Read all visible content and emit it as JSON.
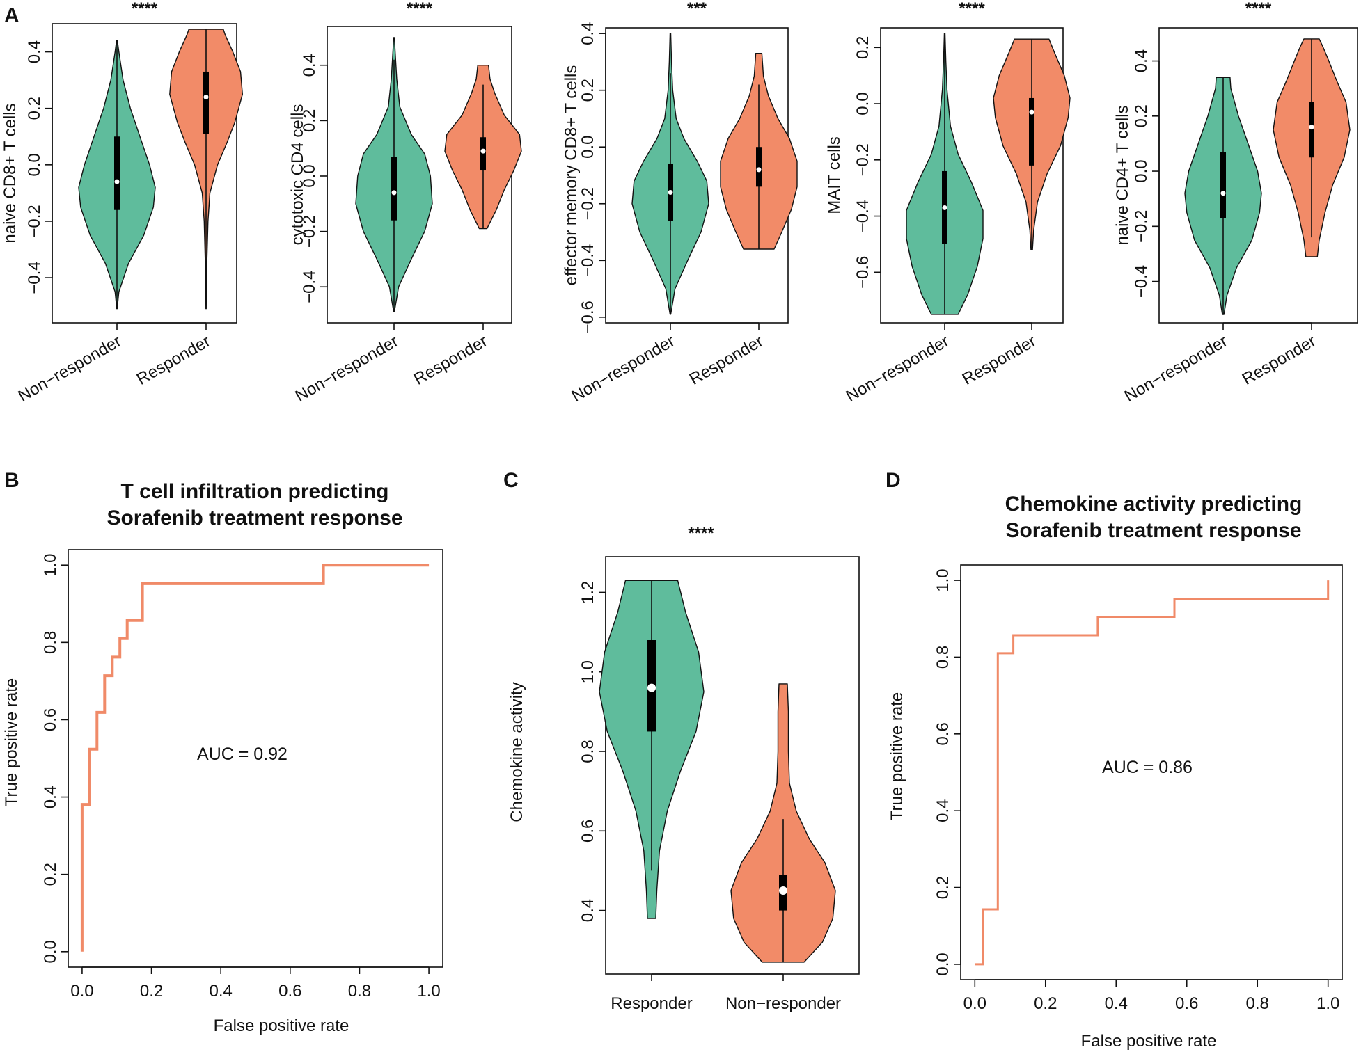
{
  "colors": {
    "non_responder_green": "#5fbc9c",
    "responder_orange": "#f28b68",
    "roc_line": "#f08a68",
    "box": "#000000",
    "median": "#ffffff"
  },
  "panels": {
    "A": {
      "letter": "A"
    },
    "B": {
      "letter": "B",
      "title_line1": "T cell infiltration predicting",
      "title_line2": "Sorafenib treatment response",
      "auc_text": "AUC = 0.92",
      "xlabel": "False positive rate",
      "ylabel": "True positive rate"
    },
    "C": {
      "letter": "C",
      "stars": "****",
      "ylabel": "Chemokine  activity"
    },
    "D": {
      "letter": "D",
      "title_line1": "Chemokine activity predicting",
      "title_line2": "Sorafenib treatment response",
      "auc_text": "AUC = 0.86",
      "xlabel": "False positive rate",
      "ylabel": "True positive rate"
    }
  },
  "chart_data": [
    {
      "type": "violin",
      "panel": "A1",
      "stars": "****",
      "ylabel": "naive CD8+ T cells",
      "categories": [
        "Non−responder",
        "Responder"
      ],
      "ylim": [
        -0.56,
        0.5
      ],
      "yticks": [
        -0.4,
        -0.2,
        0.0,
        0.2,
        0.4
      ],
      "ytick_labels": [
        "−0.4",
        "−0.2",
        "0.0",
        "0.2",
        "0.4"
      ],
      "groups": [
        {
          "name": "Non−responder",
          "min": -0.51,
          "q1": -0.16,
          "median": -0.06,
          "q3": 0.1,
          "max": 0.44,
          "whisker_low": -0.51,
          "whisker_high": 0.44,
          "density": [
            [
              -0.51,
              0.005
            ],
            [
              -0.45,
              0.05
            ],
            [
              -0.35,
              0.3
            ],
            [
              -0.25,
              0.7
            ],
            [
              -0.15,
              0.95
            ],
            [
              -0.08,
              1.0
            ],
            [
              0.0,
              0.85
            ],
            [
              0.1,
              0.6
            ],
            [
              0.2,
              0.35
            ],
            [
              0.3,
              0.16
            ],
            [
              0.4,
              0.05
            ],
            [
              0.44,
              0.01
            ]
          ]
        },
        {
          "name": "Responder",
          "min": -0.51,
          "q1": 0.11,
          "median": 0.24,
          "q3": 0.33,
          "max": 0.48,
          "whisker_low": -0.51,
          "whisker_high": 0.48,
          "density": [
            [
              -0.51,
              0.003
            ],
            [
              -0.35,
              0.02
            ],
            [
              -0.2,
              0.05
            ],
            [
              -0.1,
              0.1
            ],
            [
              0.0,
              0.3
            ],
            [
              0.08,
              0.55
            ],
            [
              0.15,
              0.75
            ],
            [
              0.25,
              0.95
            ],
            [
              0.33,
              0.9
            ],
            [
              0.4,
              0.7
            ],
            [
              0.46,
              0.5
            ],
            [
              0.48,
              0.45
            ]
          ]
        }
      ]
    },
    {
      "type": "violin",
      "panel": "A2",
      "stars": "****",
      "ylabel": "cytotoxic CD4 cells",
      "categories": [
        "Non−responder",
        "Responder"
      ],
      "ylim": [
        -0.53,
        0.54
      ],
      "yticks": [
        -0.4,
        -0.2,
        0.0,
        0.2,
        0.4
      ],
      "ytick_labels": [
        "−0.4",
        "−0.2",
        "0.0",
        "0.2",
        "0.4"
      ],
      "groups": [
        {
          "name": "Non−responder",
          "min": -0.49,
          "q1": -0.16,
          "median": -0.06,
          "q3": 0.07,
          "max": 0.5,
          "whisker_low": -0.49,
          "whisker_high": 0.42,
          "density": [
            [
              -0.49,
              0.01
            ],
            [
              -0.4,
              0.12
            ],
            [
              -0.3,
              0.45
            ],
            [
              -0.2,
              0.8
            ],
            [
              -0.1,
              1.0
            ],
            [
              0.0,
              0.95
            ],
            [
              0.08,
              0.8
            ],
            [
              0.15,
              0.45
            ],
            [
              0.25,
              0.15
            ],
            [
              0.35,
              0.07
            ],
            [
              0.45,
              0.03
            ],
            [
              0.5,
              0.01
            ]
          ]
        },
        {
          "name": "Responder",
          "min": -0.19,
          "q1": 0.02,
          "median": 0.09,
          "q3": 0.14,
          "max": 0.4,
          "whisker_low": -0.19,
          "whisker_high": 0.33,
          "density": [
            [
              -0.19,
              0.1
            ],
            [
              -0.12,
              0.35
            ],
            [
              -0.05,
              0.55
            ],
            [
              0.02,
              0.8
            ],
            [
              0.09,
              1.0
            ],
            [
              0.15,
              0.95
            ],
            [
              0.22,
              0.55
            ],
            [
              0.3,
              0.3
            ],
            [
              0.35,
              0.18
            ],
            [
              0.4,
              0.14
            ]
          ]
        }
      ]
    },
    {
      "type": "violin",
      "panel": "A3",
      "stars": "***",
      "ylabel": "effector memory CD8+ T cells",
      "categories": [
        "Non−responder",
        "Responder"
      ],
      "ylim": [
        -0.62,
        0.42
      ],
      "yticks": [
        -0.6,
        -0.4,
        -0.2,
        0.0,
        0.2,
        0.4
      ],
      "ytick_labels": [
        "−0.6",
        "−0.4",
        "−0.2",
        "0.0",
        "0.2",
        "0.4"
      ],
      "groups": [
        {
          "name": "Non−responder",
          "min": -0.59,
          "q1": -0.26,
          "median": -0.16,
          "q3": -0.06,
          "max": 0.4,
          "whisker_low": -0.59,
          "whisker_high": 0.26,
          "density": [
            [
              -0.59,
              0.01
            ],
            [
              -0.5,
              0.12
            ],
            [
              -0.4,
              0.45
            ],
            [
              -0.3,
              0.8
            ],
            [
              -0.2,
              1.0
            ],
            [
              -0.12,
              0.95
            ],
            [
              -0.05,
              0.7
            ],
            [
              0.03,
              0.35
            ],
            [
              0.1,
              0.15
            ],
            [
              0.2,
              0.06
            ],
            [
              0.3,
              0.03
            ],
            [
              0.4,
              0.01
            ]
          ]
        },
        {
          "name": "Responder",
          "min": -0.36,
          "q1": -0.14,
          "median": -0.08,
          "q3": 0.0,
          "max": 0.33,
          "whisker_low": -0.36,
          "whisker_high": 0.22,
          "density": [
            [
              -0.36,
              0.4
            ],
            [
              -0.3,
              0.6
            ],
            [
              -0.22,
              0.85
            ],
            [
              -0.14,
              1.0
            ],
            [
              -0.05,
              1.0
            ],
            [
              0.03,
              0.8
            ],
            [
              0.1,
              0.5
            ],
            [
              0.18,
              0.25
            ],
            [
              0.25,
              0.12
            ],
            [
              0.33,
              0.08
            ]
          ]
        }
      ]
    },
    {
      "type": "violin",
      "panel": "A4",
      "stars": "****",
      "ylabel": "MAIT cells",
      "categories": [
        "Non−responder",
        "Responder"
      ],
      "ylim": [
        -0.78,
        0.27
      ],
      "yticks": [
        -0.6,
        -0.4,
        -0.2,
        0.0,
        0.2
      ],
      "ytick_labels": [
        "−0.6",
        "−0.4",
        "−0.2",
        "0.0",
        "0.2"
      ],
      "groups": [
        {
          "name": "Non−responder",
          "min": -0.75,
          "q1": -0.5,
          "median": -0.37,
          "q3": -0.24,
          "max": 0.25,
          "whisker_low": -0.75,
          "whisker_high": 0.25,
          "density": [
            [
              -0.75,
              0.35
            ],
            [
              -0.68,
              0.6
            ],
            [
              -0.58,
              0.85
            ],
            [
              -0.48,
              1.0
            ],
            [
              -0.38,
              1.0
            ],
            [
              -0.28,
              0.7
            ],
            [
              -0.18,
              0.35
            ],
            [
              -0.08,
              0.15
            ],
            [
              0.05,
              0.06
            ],
            [
              0.15,
              0.03
            ],
            [
              0.25,
              0.01
            ]
          ]
        },
        {
          "name": "Responder",
          "min": -0.52,
          "q1": -0.22,
          "median": -0.03,
          "q3": 0.02,
          "max": 0.23,
          "whisker_low": -0.52,
          "whisker_high": 0.23,
          "density": [
            [
              -0.52,
              0.02
            ],
            [
              -0.45,
              0.05
            ],
            [
              -0.35,
              0.15
            ],
            [
              -0.25,
              0.4
            ],
            [
              -0.15,
              0.75
            ],
            [
              -0.05,
              0.95
            ],
            [
              0.02,
              1.0
            ],
            [
              0.1,
              0.85
            ],
            [
              0.18,
              0.6
            ],
            [
              0.23,
              0.45
            ]
          ]
        }
      ]
    },
    {
      "type": "violin",
      "panel": "A5",
      "stars": "****",
      "ylabel": "naive CD4+ T cells",
      "categories": [
        "Non−responder",
        "Responder"
      ],
      "ylim": [
        -0.55,
        0.52
      ],
      "yticks": [
        -0.4,
        -0.2,
        0.0,
        0.2,
        0.4
      ],
      "ytick_labels": [
        "−0.4",
        "−0.2",
        "0.0",
        "0.2",
        "0.4"
      ],
      "groups": [
        {
          "name": "Non−responder",
          "min": -0.52,
          "q1": -0.17,
          "median": -0.08,
          "q3": 0.07,
          "max": 0.34,
          "whisker_low": -0.52,
          "whisker_high": 0.34,
          "density": [
            [
              -0.52,
              0.02
            ],
            [
              -0.45,
              0.1
            ],
            [
              -0.35,
              0.35
            ],
            [
              -0.25,
              0.75
            ],
            [
              -0.15,
              0.95
            ],
            [
              -0.08,
              1.0
            ],
            [
              0.0,
              0.9
            ],
            [
              0.1,
              0.65
            ],
            [
              0.2,
              0.4
            ],
            [
              0.3,
              0.2
            ],
            [
              0.34,
              0.18
            ]
          ]
        },
        {
          "name": "Responder",
          "min": -0.31,
          "q1": 0.05,
          "median": 0.16,
          "q3": 0.25,
          "max": 0.48,
          "whisker_low": -0.24,
          "whisker_high": 0.48,
          "density": [
            [
              -0.31,
              0.15
            ],
            [
              -0.25,
              0.2
            ],
            [
              -0.15,
              0.35
            ],
            [
              -0.05,
              0.55
            ],
            [
              0.05,
              0.85
            ],
            [
              0.15,
              1.0
            ],
            [
              0.25,
              0.9
            ],
            [
              0.33,
              0.65
            ],
            [
              0.4,
              0.45
            ],
            [
              0.45,
              0.3
            ],
            [
              0.48,
              0.2
            ]
          ]
        }
      ]
    },
    {
      "type": "violin",
      "panel": "C",
      "stars": "****",
      "ylabel": "Chemokine  activity",
      "categories": [
        "Responder",
        "Non−responder"
      ],
      "ylim": [
        0.24,
        1.29
      ],
      "yticks": [
        0.4,
        0.6,
        0.8,
        1.0,
        1.2
      ],
      "ytick_labels": [
        "0.4",
        "0.6",
        "0.8",
        "1.0",
        "1.2"
      ],
      "groups": [
        {
          "name": "Responder",
          "min": 0.38,
          "q1": 0.85,
          "median": 0.96,
          "q3": 1.08,
          "max": 1.23,
          "whisker_low": 0.5,
          "whisker_high": 1.23,
          "density": [
            [
              0.38,
              0.08
            ],
            [
              0.45,
              0.1
            ],
            [
              0.55,
              0.15
            ],
            [
              0.65,
              0.3
            ],
            [
              0.75,
              0.55
            ],
            [
              0.85,
              0.85
            ],
            [
              0.95,
              1.0
            ],
            [
              1.05,
              0.9
            ],
            [
              1.15,
              0.65
            ],
            [
              1.23,
              0.5
            ]
          ]
        },
        {
          "name": "Non−responder",
          "min": 0.27,
          "q1": 0.4,
          "median": 0.45,
          "q3": 0.49,
          "max": 0.97,
          "whisker_low": 0.27,
          "whisker_high": 0.63,
          "density": [
            [
              0.27,
              0.4
            ],
            [
              0.32,
              0.75
            ],
            [
              0.38,
              0.95
            ],
            [
              0.45,
              1.0
            ],
            [
              0.52,
              0.8
            ],
            [
              0.58,
              0.5
            ],
            [
              0.65,
              0.25
            ],
            [
              0.72,
              0.12
            ],
            [
              0.8,
              0.1
            ],
            [
              0.9,
              0.1
            ],
            [
              0.97,
              0.08
            ]
          ]
        }
      ]
    },
    {
      "type": "line",
      "panel": "B",
      "title": "T cell infiltration predicting Sorafenib treatment response",
      "xlabel": "False positive rate",
      "ylabel": "True positive rate",
      "xlim": [
        0,
        1
      ],
      "ylim": [
        0,
        1
      ],
      "xticks": [
        0.0,
        0.2,
        0.4,
        0.6,
        0.8,
        1.0
      ],
      "xtick_labels": [
        "0.0",
        "0.2",
        "0.4",
        "0.6",
        "0.8",
        "1.0"
      ],
      "yticks": [
        0.0,
        0.2,
        0.4,
        0.6,
        0.8,
        1.0
      ],
      "ytick_labels": [
        "0.0",
        "0.2",
        "0.4",
        "0.6",
        "0.8",
        "1.0"
      ],
      "auc": 0.92,
      "step": true,
      "points": [
        [
          0,
          0
        ],
        [
          0,
          0.381
        ],
        [
          0.022,
          0.381
        ],
        [
          0.022,
          0.524
        ],
        [
          0.043,
          0.524
        ],
        [
          0.043,
          0.619
        ],
        [
          0.065,
          0.619
        ],
        [
          0.065,
          0.714
        ],
        [
          0.087,
          0.714
        ],
        [
          0.087,
          0.762
        ],
        [
          0.109,
          0.762
        ],
        [
          0.109,
          0.81
        ],
        [
          0.13,
          0.81
        ],
        [
          0.13,
          0.857
        ],
        [
          0.174,
          0.857
        ],
        [
          0.174,
          0.952
        ],
        [
          0.696,
          0.952
        ],
        [
          0.696,
          1.0
        ],
        [
          1.0,
          1.0
        ]
      ]
    },
    {
      "type": "line",
      "panel": "D",
      "title": "Chemokine activity predicting Sorafenib treatment response",
      "xlabel": "False positive rate",
      "ylabel": "True positive rate",
      "xlim": [
        0,
        1
      ],
      "ylim": [
        0,
        1
      ],
      "xticks": [
        0.0,
        0.2,
        0.4,
        0.6,
        0.8,
        1.0
      ],
      "xtick_labels": [
        "0.0",
        "0.2",
        "0.4",
        "0.6",
        "0.8",
        "1.0"
      ],
      "yticks": [
        0.0,
        0.2,
        0.4,
        0.6,
        0.8,
        1.0
      ],
      "ytick_labels": [
        "0.0",
        "0.2",
        "0.4",
        "0.6",
        "0.8",
        "1.0"
      ],
      "auc": 0.86,
      "step": true,
      "points": [
        [
          0,
          0
        ],
        [
          0.022,
          0
        ],
        [
          0.022,
          0.143
        ],
        [
          0.065,
          0.143
        ],
        [
          0.065,
          0.81
        ],
        [
          0.109,
          0.81
        ],
        [
          0.109,
          0.857
        ],
        [
          0.348,
          0.857
        ],
        [
          0.348,
          0.905
        ],
        [
          0.565,
          0.905
        ],
        [
          0.565,
          0.952
        ],
        [
          1.0,
          0.952
        ],
        [
          1.0,
          1.0
        ]
      ]
    }
  ]
}
